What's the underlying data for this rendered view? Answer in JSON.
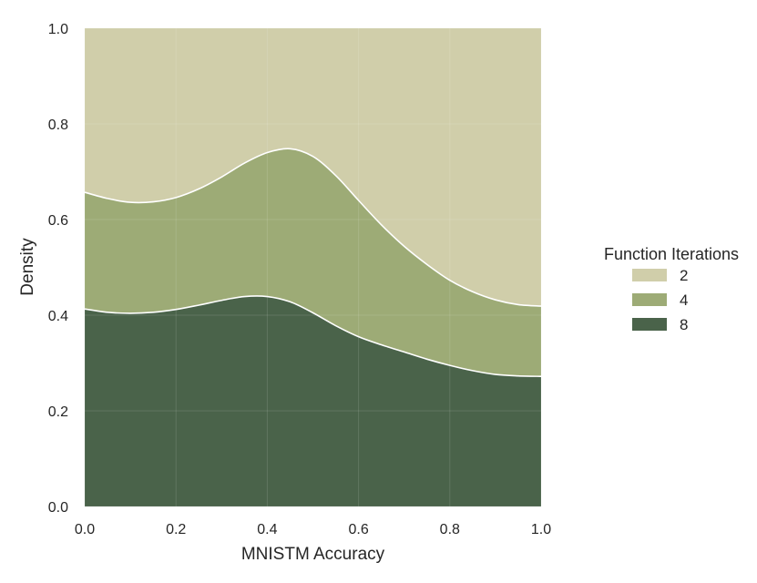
{
  "chart_data": {
    "type": "area",
    "subtype": "stacked-density-fill",
    "title": "",
    "xlabel": "MNISTM Accuracy",
    "ylabel": "Density",
    "xlim": [
      0.0,
      1.0
    ],
    "ylim": [
      0.0,
      1.0
    ],
    "xticks": [
      "0.0",
      "0.2",
      "0.4",
      "0.6",
      "0.8",
      "1.0"
    ],
    "yticks": [
      "0.0",
      "0.2",
      "0.4",
      "0.6",
      "0.8",
      "1.0"
    ],
    "grid": true,
    "legend": {
      "title": "Function Iterations",
      "placement": "right",
      "entries": [
        {
          "label": "2",
          "color": "#d0ceaa"
        },
        {
          "label": "4",
          "color": "#9dab76"
        },
        {
          "label": "8",
          "color": "#4a634a"
        }
      ]
    },
    "x": [
      0.0,
      0.05,
      0.1,
      0.15,
      0.2,
      0.25,
      0.3,
      0.35,
      0.4,
      0.45,
      0.5,
      0.55,
      0.6,
      0.65,
      0.7,
      0.75,
      0.8,
      0.85,
      0.9,
      0.95,
      1.0
    ],
    "series": [
      {
        "name": "8",
        "color": "#4a634a",
        "upper": [
          0.413,
          0.406,
          0.404,
          0.406,
          0.412,
          0.421,
          0.431,
          0.439,
          0.439,
          0.428,
          0.405,
          0.378,
          0.355,
          0.338,
          0.323,
          0.308,
          0.295,
          0.284,
          0.276,
          0.273,
          0.272
        ]
      },
      {
        "name": "4",
        "color": "#9dab76",
        "upper": [
          0.657,
          0.644,
          0.636,
          0.637,
          0.646,
          0.664,
          0.689,
          0.718,
          0.74,
          0.748,
          0.732,
          0.692,
          0.64,
          0.589,
          0.544,
          0.506,
          0.473,
          0.449,
          0.432,
          0.422,
          0.419
        ]
      },
      {
        "name": "2",
        "color": "#d0ceaa",
        "upper": [
          1.0,
          1.0,
          1.0,
          1.0,
          1.0,
          1.0,
          1.0,
          1.0,
          1.0,
          1.0,
          1.0,
          1.0,
          1.0,
          1.0,
          1.0,
          1.0,
          1.0,
          1.0,
          1.0,
          1.0,
          1.0
        ]
      }
    ]
  }
}
